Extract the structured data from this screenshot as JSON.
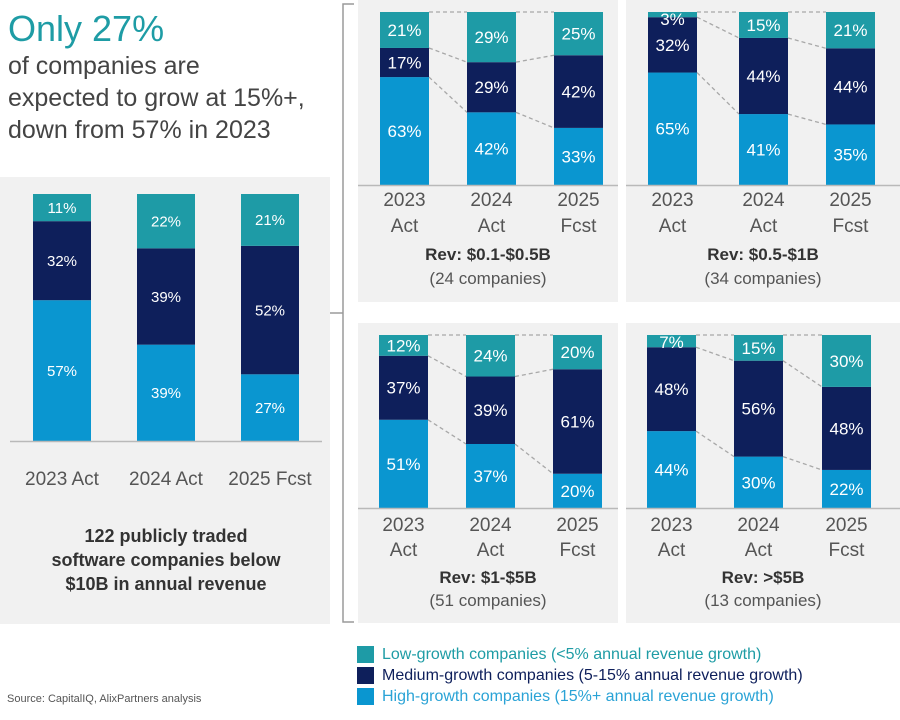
{
  "headline": {
    "highlight": "Only 27%",
    "lines": [
      "of companies are",
      "expected to grow at 15%+,",
      "down from 57% in 2023"
    ]
  },
  "colors": {
    "low": "#1e9ba6",
    "medium": "#0e1f5b",
    "high": "#0a96d0",
    "low_text": "#1e9ca5",
    "medium_text": "#0e1f5b",
    "high_text": "#2aa3d6"
  },
  "legend": [
    {
      "key": "low",
      "label": "Low-growth companies (<5% annual revenue growth)"
    },
    {
      "key": "medium",
      "label": "Medium-growth companies (5-15% annual revenue growth)"
    },
    {
      "key": "high",
      "label": "High-growth companies (15%+ annual revenue growth)"
    }
  ],
  "source": "Source: CapitalIQ, AlixPartners analysis",
  "chart_data": [
    {
      "type": "bar",
      "stacked": true,
      "id": "overall",
      "title": "122 publicly traded software companies below $10B in annual revenue",
      "title_lines": [
        "122 publicly traded",
        "software companies below",
        "$10B in annual revenue"
      ],
      "categories": [
        "2023 Act",
        "2024 Act",
        "2025 Fcst"
      ],
      "series": [
        {
          "name": "High-growth",
          "key": "high",
          "values": [
            57,
            39,
            27
          ]
        },
        {
          "name": "Medium-growth",
          "key": "medium",
          "values": [
            32,
            39,
            52
          ]
        },
        {
          "name": "Low-growth",
          "key": "low",
          "values": [
            11,
            22,
            21
          ]
        }
      ],
      "ylim": [
        0,
        100
      ],
      "unit": "%"
    },
    {
      "type": "bar",
      "stacked": true,
      "id": "rev-0.1-0.5b",
      "title": "Rev: $0.1-$0.5B",
      "subtitle": "(24 companies)",
      "categories": [
        "2023 Act",
        "2024 Act",
        "2025 Fcst"
      ],
      "category_lines": [
        [
          "2023",
          "Act"
        ],
        [
          "2024",
          "Act"
        ],
        [
          "2025",
          "Fcst"
        ]
      ],
      "series": [
        {
          "name": "High-growth",
          "key": "high",
          "values": [
            63,
            42,
            33
          ]
        },
        {
          "name": "Medium-growth",
          "key": "medium",
          "values": [
            17,
            29,
            42
          ]
        },
        {
          "name": "Low-growth",
          "key": "low",
          "values": [
            21,
            29,
            25
          ]
        }
      ],
      "ylim": [
        0,
        100
      ],
      "unit": "%"
    },
    {
      "type": "bar",
      "stacked": true,
      "id": "rev-0.5-1b",
      "title": "Rev: $0.5-$1B",
      "subtitle": "(34 companies)",
      "categories": [
        "2023 Act",
        "2024 Act",
        "2025 Fcst"
      ],
      "category_lines": [
        [
          "2023",
          "Act"
        ],
        [
          "2024",
          "Act"
        ],
        [
          "2025",
          "Fcst"
        ]
      ],
      "series": [
        {
          "name": "High-growth",
          "key": "high",
          "values": [
            65,
            41,
            35
          ]
        },
        {
          "name": "Medium-growth",
          "key": "medium",
          "values": [
            32,
            44,
            44
          ]
        },
        {
          "name": "Low-growth",
          "key": "low",
          "values": [
            3,
            15,
            21
          ]
        }
      ],
      "ylim": [
        0,
        100
      ],
      "unit": "%"
    },
    {
      "type": "bar",
      "stacked": true,
      "id": "rev-1-5b",
      "title": "Rev: $1-$5B",
      "subtitle": "(51 companies)",
      "categories": [
        "2023 Act",
        "2024 Act",
        "2025 Fcst"
      ],
      "category_lines": [
        [
          "2023",
          "Act"
        ],
        [
          "2024",
          "Act"
        ],
        [
          "2025",
          "Fcst"
        ]
      ],
      "series": [
        {
          "name": "High-growth",
          "key": "high",
          "values": [
            51,
            37,
            20
          ]
        },
        {
          "name": "Medium-growth",
          "key": "medium",
          "values": [
            37,
            39,
            61
          ]
        },
        {
          "name": "Low-growth",
          "key": "low",
          "values": [
            12,
            24,
            20
          ]
        }
      ],
      "ylim": [
        0,
        100
      ],
      "unit": "%"
    },
    {
      "type": "bar",
      "stacked": true,
      "id": "rev-gt-5b",
      "title": "Rev: >$5B",
      "subtitle": "(13 companies)",
      "categories": [
        "2023 Act",
        "2024 Act",
        "2025 Fcst"
      ],
      "category_lines": [
        [
          "2023",
          "Act"
        ],
        [
          "2024",
          "Act"
        ],
        [
          "2025",
          "Fcst"
        ]
      ],
      "series": [
        {
          "name": "High-growth",
          "key": "high",
          "values": [
            44,
            30,
            22
          ]
        },
        {
          "name": "Medium-growth",
          "key": "medium",
          "values": [
            48,
            56,
            48
          ]
        },
        {
          "name": "Low-growth",
          "key": "low",
          "values": [
            7,
            15,
            30
          ]
        }
      ],
      "ylim": [
        0,
        100
      ],
      "unit": "%"
    }
  ]
}
